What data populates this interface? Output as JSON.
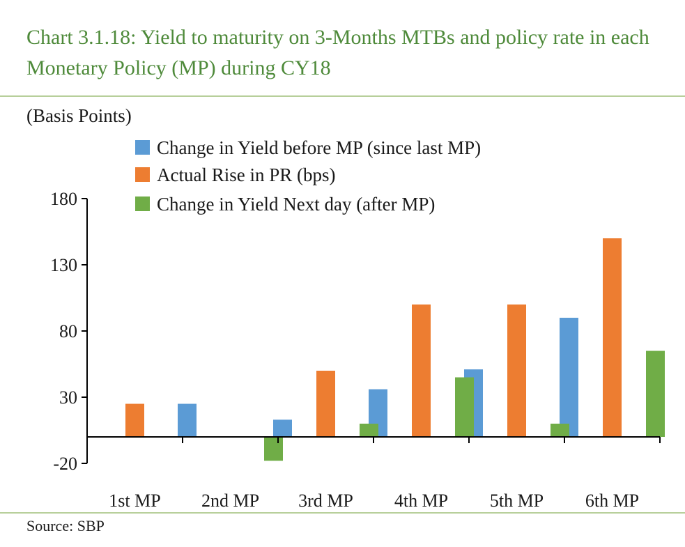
{
  "header": {
    "title": "Chart 3.1.18: Yield to maturity on 3-Months MTBs and policy rate in each Monetary Policy (MP) during CY18",
    "unit": "(Basis Points)"
  },
  "footer": {
    "source": "Source:  SBP"
  },
  "chart_data": {
    "type": "bar",
    "title": "Chart 3.1.18: Yield to maturity on 3-Months MTBs and policy rate in each Monetary Policy (MP) during CY18",
    "ylabel": "(Basis Points)",
    "xlabel": "",
    "categories": [
      "1st MP",
      "2nd MP",
      "3rd MP",
      "4th MP",
      "5th MP",
      "6th MP"
    ],
    "series": [
      {
        "name": "Change in Yield before MP (since last MP)",
        "color": "#5b9bd5",
        "values": [
          0,
          25,
          13,
          36,
          51,
          90
        ]
      },
      {
        "name": "Actual Rise in PR (bps)",
        "color": "#ed7d31",
        "values": [
          25,
          0,
          50,
          100,
          100,
          150
        ]
      },
      {
        "name": "Change in Yield Next day (after MP)",
        "color": "#70ad47",
        "values": [
          0,
          -18,
          10,
          45,
          10,
          65
        ]
      }
    ],
    "ylim": [
      -20,
      180
    ],
    "yticks": [
      -20,
      30,
      80,
      130,
      180
    ],
    "legend": "top-center",
    "grid": false
  }
}
